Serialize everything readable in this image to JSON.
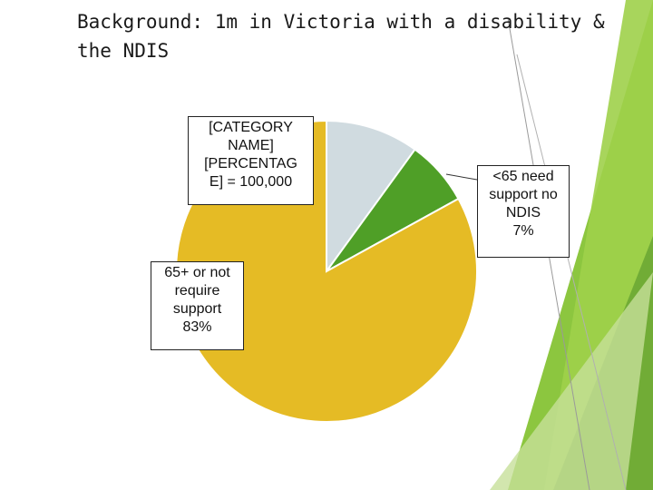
{
  "slide": {
    "title_line1": "Background: 1m in Victoria with a disability &",
    "title_line2": "the NDIS"
  },
  "colors": {
    "slice_1": "#d0dbe0",
    "slice_2": "#4f9f27",
    "slice_3": "#e5bb25",
    "deco_green_light": "#c7e09a",
    "deco_green_mid": "#8cc63f",
    "deco_green_dark": "#6aa632"
  },
  "chart_data": {
    "type": "pie",
    "title": "",
    "total_label": "1m",
    "slices": [
      {
        "category": "[CATEGORY NAME]",
        "percent": 10,
        "label_lines": [
          "[CATEGORY",
          "NAME]",
          "[PERCENTAG",
          "E] = 100,000"
        ]
      },
      {
        "category": "<65 need support no NDIS",
        "percent": 7,
        "label_lines": [
          "<65 need",
          "support no",
          "NDIS",
          "7%"
        ]
      },
      {
        "category": "65+ or not require support",
        "percent": 83,
        "label_lines": [
          "65+ or not",
          "require",
          "support",
          "83%"
        ]
      }
    ]
  }
}
